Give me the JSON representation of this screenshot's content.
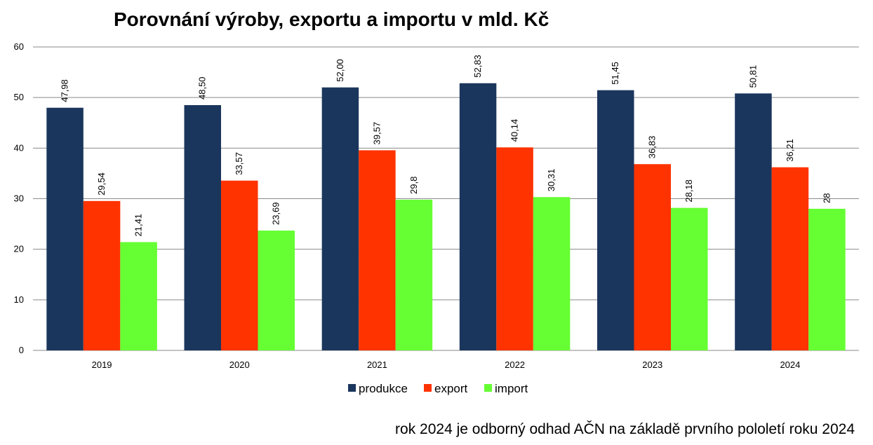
{
  "title": "Porovnání výroby, exportu a importu v mld. Kč",
  "note": "rok 2024 je odborný odhad AČN na základě prvního pololetí roku 2024",
  "chart_data": {
    "type": "bar",
    "title": "Porovnání výroby, exportu a importu v mld. Kč",
    "xlabel": "",
    "ylabel": "",
    "ylim": [
      0,
      60
    ],
    "yticks": [
      0,
      10,
      20,
      30,
      40,
      50,
      60
    ],
    "grid": true,
    "legend_position": "bottom",
    "categories": [
      "2019",
      "2020",
      "2021",
      "2022",
      "2023",
      "2024"
    ],
    "series": [
      {
        "name": "produkce",
        "color": "#1b365d",
        "values": [
          47.98,
          48.5,
          52.0,
          52.83,
          51.45,
          50.81
        ],
        "labels": [
          "47,98",
          "48,50",
          "52,00",
          "52,83",
          "51,45",
          "50,81"
        ]
      },
      {
        "name": "export",
        "color": "#ff3300",
        "values": [
          29.54,
          33.57,
          39.57,
          40.14,
          36.83,
          36.21
        ],
        "labels": [
          "29,54",
          "33,57",
          "39,57",
          "40,14",
          "36,83",
          "36,21"
        ]
      },
      {
        "name": "import",
        "color": "#66ff33",
        "values": [
          21.41,
          23.69,
          29.8,
          30.31,
          28.18,
          28
        ],
        "labels": [
          "21,41",
          "23,69",
          "29,8",
          "30,31",
          "28,18",
          "28"
        ]
      }
    ]
  }
}
